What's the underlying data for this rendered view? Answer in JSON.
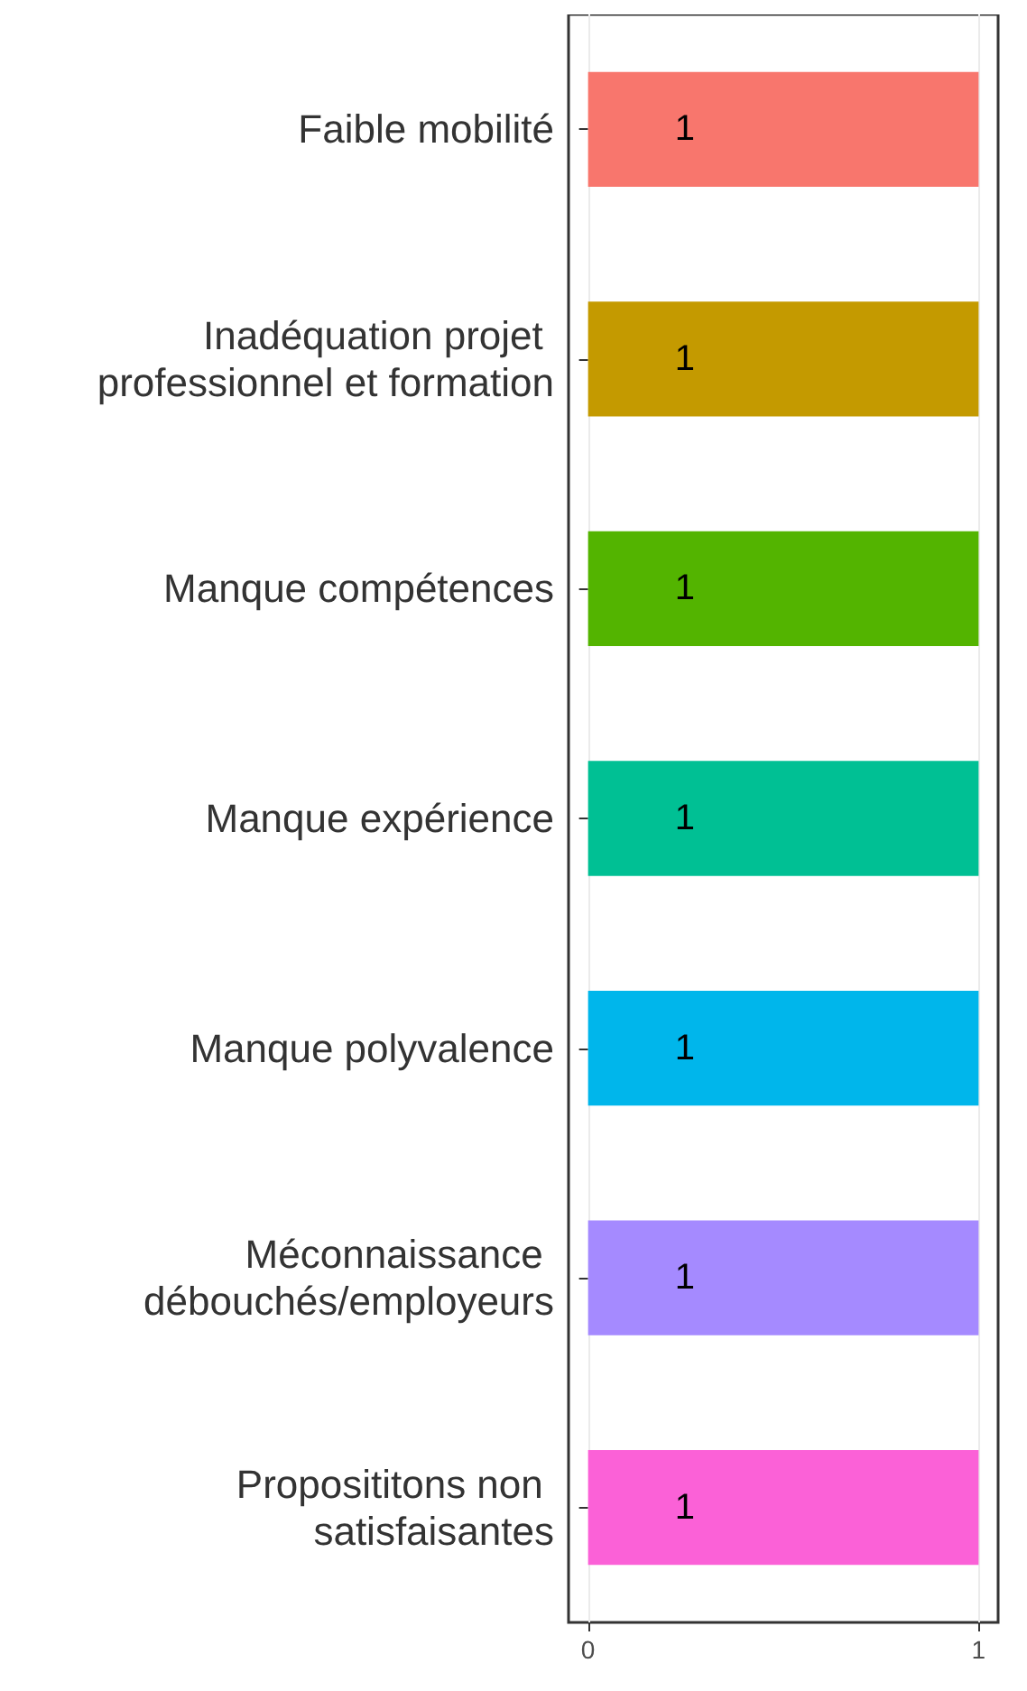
{
  "chart_data": {
    "type": "bar",
    "orientation": "horizontal",
    "categories": [
      "Faible mobilité",
      "Inadéquation projet professionnel et formation",
      "Manque compétences",
      "Manque expérience",
      "Manque polyvalence",
      "Méconnaissance débouchés/employeurs",
      "Proposititons non satisfaisantes"
    ],
    "values": [
      1,
      1,
      1,
      1,
      1,
      1,
      1
    ],
    "colors": [
      "#f8766d",
      "#c49a00",
      "#53b400",
      "#00c094",
      "#00b6eb",
      "#a58aff",
      "#fb61d7"
    ],
    "xlim": [
      -0.05,
      1.05
    ],
    "xticks": [
      0,
      1
    ],
    "grid": "x",
    "data_labels": true
  }
}
